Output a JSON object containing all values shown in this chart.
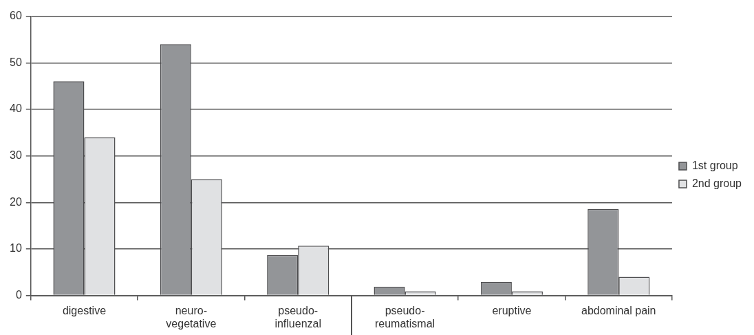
{
  "chart_data": {
    "type": "bar",
    "categories": [
      "digestive",
      "neuro-vegetative",
      "pseudo-influenzal",
      "pseudo-reumatismal",
      "eruptive",
      "abdominal pain"
    ],
    "series": [
      {
        "name": "1st group",
        "color": "#939598",
        "values": [
          46,
          54,
          8.7,
          1.9,
          2.9,
          18.6
        ]
      },
      {
        "name": "2nd group",
        "color": "#e0e1e3",
        "values": [
          34,
          25,
          10.7,
          0.9,
          0.9,
          4
        ]
      }
    ],
    "ylim": [
      0,
      60
    ],
    "yticks": [
      0,
      10,
      20,
      30,
      40,
      50,
      60
    ],
    "grid": "y",
    "legend": "right"
  }
}
